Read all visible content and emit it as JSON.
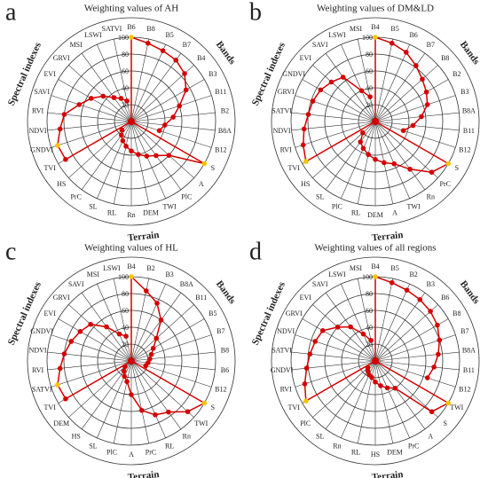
{
  "chart_data": [
    {
      "type": "radar",
      "panel": "a",
      "title": "Weighting values of AH",
      "rlim": [
        0,
        100
      ],
      "rticks": [
        20,
        40,
        60,
        80,
        100
      ],
      "line_color": "#d40000",
      "marker_color": "#d40000",
      "highlight_color": "#f5c400",
      "series": [
        {
          "name": "Bands",
          "categories": [
            "B6",
            "B8",
            "B5",
            "B7",
            "B4",
            "B3",
            "B11",
            "B2",
            "B8A",
            "B12"
          ],
          "values": [
            100,
            95,
            92,
            90,
            85,
            75,
            60,
            50,
            40,
            35
          ]
        },
        {
          "name": "Terrain",
          "categories": [
            "S",
            "A",
            "PlC",
            "TWI",
            "DEM",
            "Rn",
            "RL",
            "SL",
            "PrC",
            "HS"
          ],
          "values": [
            100,
            60,
            50,
            45,
            40,
            35,
            30,
            25,
            20,
            15
          ]
        },
        {
          "name": "Spectral indexes",
          "categories": [
            "TVI",
            "GNDVI",
            "NDVI",
            "RVI",
            "SAVI",
            "EVI",
            "GRVI",
            "MSI",
            "LSWI",
            "SATVI"
          ],
          "values": [
            90,
            92,
            85,
            80,
            65,
            55,
            45,
            35,
            30,
            25
          ]
        }
      ]
    },
    {
      "type": "radar",
      "panel": "b",
      "title": "Weighting values of DM&LD",
      "rlim": [
        0,
        100
      ],
      "rticks": [
        20,
        40,
        60,
        80,
        100
      ],
      "line_color": "#d40000",
      "marker_color": "#d40000",
      "highlight_color": "#f5c400",
      "series": [
        {
          "name": "Bands",
          "categories": [
            "B4",
            "B5",
            "B6",
            "B7",
            "B8",
            "B2",
            "B3",
            "B8A",
            "B11",
            "B12"
          ],
          "values": [
            100,
            95,
            90,
            82,
            75,
            70,
            65,
            55,
            45,
            35
          ]
        },
        {
          "name": "Terrain",
          "categories": [
            "S",
            "PrC",
            "Rn",
            "TWI",
            "A",
            "DEM",
            "RL",
            "PlC",
            "SL",
            "HS"
          ],
          "values": [
            100,
            90,
            70,
            55,
            50,
            45,
            40,
            35,
            30,
            20
          ]
        },
        {
          "name": "Spectral indexes",
          "categories": [
            "TVI",
            "RVI",
            "NDVI",
            "SATVI",
            "GRVI",
            "GNDVI",
            "EVI",
            "SAVI",
            "LSWI",
            "MSI"
          ],
          "values": [
            95,
            90,
            85,
            80,
            78,
            75,
            70,
            65,
            40,
            30
          ]
        }
      ]
    },
    {
      "type": "radar",
      "panel": "c",
      "title": "Weighting values of HL",
      "rlim": [
        0,
        100
      ],
      "rticks": [
        20,
        40,
        60,
        80,
        100
      ],
      "line_color": "#d40000",
      "marker_color": "#d40000",
      "highlight_color": "#f5c400",
      "series": [
        {
          "name": "Bands",
          "categories": [
            "B4",
            "B2",
            "B3",
            "B8A",
            "B11",
            "B5",
            "B7",
            "B8",
            "B6",
            "B12"
          ],
          "values": [
            100,
            85,
            75,
            60,
            40,
            30,
            25,
            22,
            20,
            18
          ]
        },
        {
          "name": "Terrain",
          "categories": [
            "S",
            "TWI",
            "Rn",
            "RL",
            "PrC",
            "A",
            "PlC",
            "SL",
            "HS",
            "DEM"
          ],
          "values": [
            100,
            90,
            75,
            70,
            60,
            40,
            25,
            20,
            15,
            10
          ]
        },
        {
          "name": "Spectral indexes",
          "categories": [
            "TVI",
            "SATVI",
            "RVI",
            "NDVI",
            "GNDVI",
            "EVI",
            "GRVI",
            "SAVI",
            "MSI",
            "LSWI"
          ],
          "values": [
            90,
            92,
            85,
            80,
            75,
            70,
            65,
            50,
            35,
            30
          ]
        }
      ]
    },
    {
      "type": "radar",
      "panel": "d",
      "title": "Weighting values of all regions",
      "rlim": [
        0,
        100
      ],
      "rticks": [
        20,
        40,
        60,
        80,
        100
      ],
      "line_color": "#d40000",
      "marker_color": "#d40000",
      "highlight_color": "#f5c400",
      "series": [
        {
          "name": "Bands",
          "categories": [
            "B4",
            "B5",
            "B2",
            "B3",
            "B6",
            "B8",
            "B7",
            "B8A",
            "B11",
            "B12"
          ],
          "values": [
            100,
            95,
            92,
            90,
            88,
            85,
            80,
            75,
            70,
            65
          ]
        },
        {
          "name": "Terrain",
          "categories": [
            "TWI",
            "S",
            "A",
            "PrC",
            "DEM",
            "HS",
            "RL",
            "Rn",
            "SL",
            "PlC"
          ],
          "values": [
            100,
            90,
            40,
            35,
            30,
            25,
            20,
            18,
            15,
            12
          ]
        },
        {
          "name": "Spectral indexes",
          "categories": [
            "TVI",
            "RVI",
            "GNDVI",
            "SATVI",
            "NDVI",
            "GRVI",
            "EVI",
            "SAVI",
            "LSWI",
            "MSI"
          ],
          "values": [
            95,
            88,
            82,
            78,
            75,
            72,
            60,
            50,
            35,
            25
          ]
        }
      ]
    }
  ]
}
